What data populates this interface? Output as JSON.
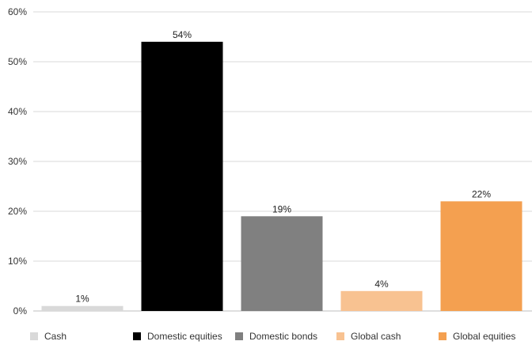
{
  "chart_data": {
    "type": "bar",
    "categories": [
      "Cash",
      "Domestic equities",
      "Domestic bonds",
      "Global cash",
      "Global equities"
    ],
    "values": [
      1,
      54,
      19,
      4,
      22
    ],
    "data_labels": [
      "1%",
      "54%",
      "19%",
      "4%",
      "22%"
    ],
    "colors": [
      "#d9d9d9",
      "#000000",
      "#808080",
      "#f8c291",
      "#f4a050"
    ],
    "ylim": [
      0,
      60
    ],
    "yticks": [
      0,
      10,
      20,
      30,
      40,
      50,
      60
    ],
    "ytick_labels": [
      "0%",
      "10%",
      "20%",
      "30%",
      "40%",
      "50%",
      "60%"
    ],
    "grid": true,
    "legend_position": "bottom",
    "title": "",
    "xlabel": "",
    "ylabel": ""
  }
}
